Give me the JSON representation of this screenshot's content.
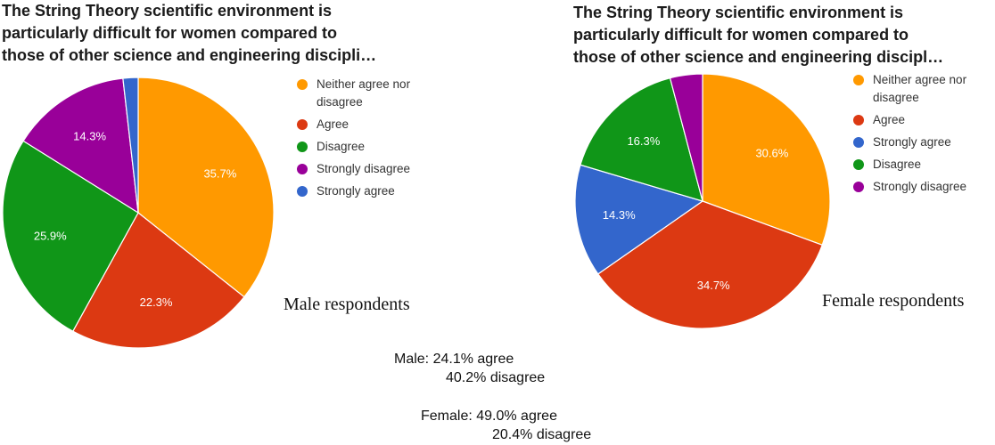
{
  "chart_data": [
    {
      "type": "pie",
      "title_lines": [
        "The String Theory scientific environment is",
        "particularly difficult for women compared to",
        "those of other science and engineering discipli…"
      ],
      "caption": "Male respondents",
      "legend": "right",
      "slices": [
        {
          "name": "Neither agree nor disagree",
          "name_lines": [
            "Neither agree nor",
            "disagree"
          ],
          "value": 35.7,
          "label": "35.7%",
          "color": "#ff9900"
        },
        {
          "name": "Agree",
          "name_lines": [
            "Agree"
          ],
          "value": 22.3,
          "label": "22.3%",
          "color": "#dc3912"
        },
        {
          "name": "Disagree",
          "name_lines": [
            "Disagree"
          ],
          "value": 25.9,
          "label": "25.9%",
          "color": "#109618"
        },
        {
          "name": "Strongly disagree",
          "name_lines": [
            "Strongly disagree"
          ],
          "value": 14.3,
          "label": "14.3%",
          "color": "#990099"
        },
        {
          "name": "Strongly agree",
          "name_lines": [
            "Strongly agree"
          ],
          "value": 1.8,
          "label": "",
          "color": "#3366cc"
        }
      ]
    },
    {
      "type": "pie",
      "title_lines": [
        "The String Theory scientific environment is",
        "particularly difficult for women compared to",
        "those of other science and engineering discipl…"
      ],
      "caption": "Female respondents",
      "legend": "right",
      "slices": [
        {
          "name": "Neither agree nor disagree",
          "name_lines": [
            "Neither agree nor",
            "disagree"
          ],
          "value": 30.6,
          "label": "30.6%",
          "color": "#ff9900"
        },
        {
          "name": "Agree",
          "name_lines": [
            "Agree"
          ],
          "value": 34.7,
          "label": "34.7%",
          "color": "#dc3912"
        },
        {
          "name": "Strongly agree",
          "name_lines": [
            "Strongly agree"
          ],
          "value": 14.3,
          "label": "14.3%",
          "color": "#3366cc"
        },
        {
          "name": "Disagree",
          "name_lines": [
            "Disagree"
          ],
          "value": 16.3,
          "label": "16.3%",
          "color": "#109618"
        },
        {
          "name": "Strongly disagree",
          "name_lines": [
            "Strongly disagree"
          ],
          "value": 4.1,
          "label": "",
          "color": "#990099"
        }
      ]
    }
  ],
  "summary": {
    "male_agree": "Male: 24.1% agree",
    "male_disagree": "40.2% disagree",
    "female_agree": "Female: 49.0% agree",
    "female_disagree": "20.4% disagree"
  }
}
